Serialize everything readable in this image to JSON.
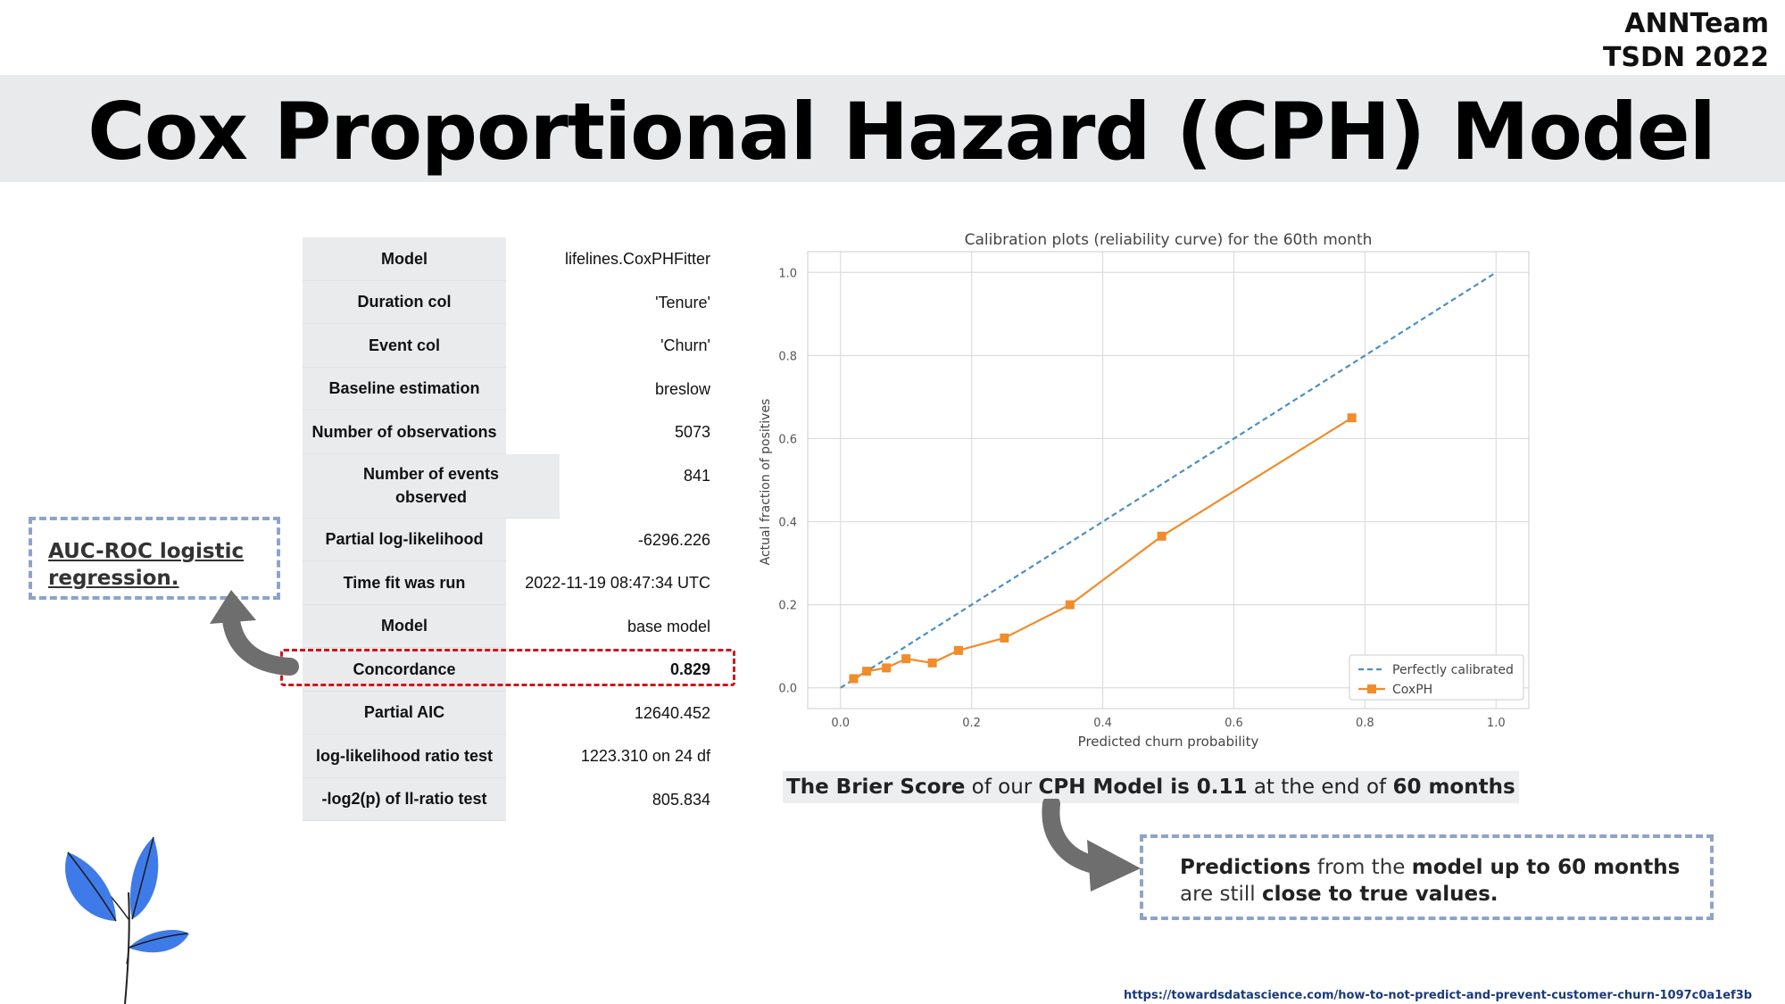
{
  "corner": {
    "line1": "ANNTeam",
    "line2": "TSDN 2022"
  },
  "title": "Cox Proportional Hazard (CPH) Model",
  "summary_table": [
    {
      "key": "Model",
      "value": "lifelines.CoxPHFitter"
    },
    {
      "key": "Duration col",
      "value": "'Tenure'"
    },
    {
      "key": "Event col",
      "value": "'Churn'"
    },
    {
      "key": "Baseline estimation",
      "value": "breslow"
    },
    {
      "key": "Number of observations",
      "value": "5073"
    },
    {
      "key": "Number of events observed",
      "value": "841"
    },
    {
      "key": "Partial log-likelihood",
      "value": "-6296.226"
    },
    {
      "key": "Time fit was run",
      "value": "2022-11-19 08:47:34 UTC"
    },
    {
      "key": "Model",
      "value": "base model"
    },
    {
      "key": "Concordance",
      "value": "0.829"
    },
    {
      "key": "Partial AIC",
      "value": "12640.452"
    },
    {
      "key": "log-likelihood ratio test",
      "value": "1223.310 on 24 df"
    },
    {
      "key": "-log2(p) of ll-ratio test",
      "value": "805.834"
    }
  ],
  "auc_callout": "AUC-ROC logistic regression.",
  "brier": {
    "p1": "The Brier Score",
    "p2": " of our ",
    "p3": "CPH Model",
    "p4": " is ",
    "p5": "0.11",
    "p6": " at the end of ",
    "p7": "60 months"
  },
  "prediction_callout": {
    "p1": "Predictions",
    "p2": " from the ",
    "p3": "model up to 60 months",
    "p4": " are still ",
    "p5": "close to true values."
  },
  "source_url": "https://towardsdatascience.com/how-to-not-predict-and-prevent-customer-churn-1097c0a1ef3b",
  "colors": {
    "concordance_box": "#d0141c",
    "callout_border": "#8ea3cb",
    "perfect_line": "#4a90c0",
    "coxph_line": "#f08c2a"
  },
  "chart_data": {
    "type": "line",
    "title": "Calibration plots (reliability curve) for the 60th month",
    "xlabel": "Predicted churn probability",
    "ylabel": "Actual fraction of positives",
    "xlim": [
      -0.05,
      1.05
    ],
    "ylim": [
      -0.05,
      1.05
    ],
    "xticks": [
      0.0,
      0.2,
      0.4,
      0.6,
      0.8,
      1.0
    ],
    "yticks": [
      0.0,
      0.2,
      0.4,
      0.6,
      0.8,
      1.0
    ],
    "grid": true,
    "legend_position": "lower-right",
    "series": [
      {
        "name": "Perfectly calibrated",
        "style": "dashed",
        "x": [
          0.0,
          1.0
        ],
        "y": [
          0.0,
          1.0
        ]
      },
      {
        "name": "CoxPH",
        "style": "solid-square",
        "x": [
          0.02,
          0.04,
          0.07,
          0.1,
          0.14,
          0.18,
          0.25,
          0.35,
          0.49,
          0.78
        ],
        "y": [
          0.022,
          0.04,
          0.048,
          0.07,
          0.06,
          0.09,
          0.12,
          0.2,
          0.365,
          0.65
        ]
      }
    ]
  }
}
